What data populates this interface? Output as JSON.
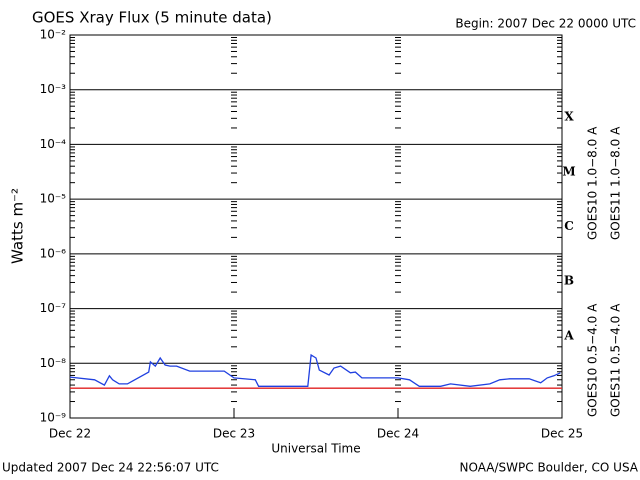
{
  "chart_data": {
    "type": "line",
    "title": "GOES Xray Flux (5 minute data)",
    "subtitle": "Begin:  2007 Dec 22 0000 UTC",
    "y_label": "Watts m⁻²",
    "x_label": "Universal Time",
    "footer_left": "Updated 2007 Dec 24 22:56:07 UTC",
    "footer_right": "NOAA/SWPC Boulder, CO USA",
    "log_y": true,
    "grid": true,
    "xlim": [
      0,
      3
    ],
    "xticks": [
      {
        "value": 0,
        "label": "Dec 22"
      },
      {
        "value": 1,
        "label": "Dec 23"
      },
      {
        "value": 2,
        "label": "Dec 24"
      },
      {
        "value": 3,
        "label": "Dec 25"
      }
    ],
    "ylim": [
      1e-09,
      0.01
    ],
    "yticks": [
      {
        "value": 1e-09,
        "label": "10⁻⁹"
      },
      {
        "value": 1e-08,
        "label": "10⁻⁸"
      },
      {
        "value": 1e-07,
        "label": "10⁻⁷"
      },
      {
        "value": 1e-06,
        "label": "10⁻⁶"
      },
      {
        "value": 1e-05,
        "label": "10⁻⁵"
      },
      {
        "value": 0.0001,
        "label": "10⁻⁴"
      },
      {
        "value": 0.001,
        "label": "10⁻³"
      },
      {
        "value": 0.01,
        "label": "10⁻²"
      }
    ],
    "class_labels": [
      "X",
      "M",
      "C",
      "B",
      "A"
    ],
    "series": [
      {
        "name": "GOES10 1.0−8.0 A",
        "color": "#8020c0",
        "x": [
          0,
          3
        ],
        "values": [
          null,
          null
        ]
      },
      {
        "name": "GOES11 1.0−8.0 A",
        "color": "#e02020",
        "x": [
          0,
          3
        ],
        "values": [
          3.5e-09,
          3.5e-09
        ]
      },
      {
        "name": "GOES10 0.5−4.0 A",
        "color": "#f0a020",
        "x": [
          0,
          3
        ],
        "values": [
          null,
          null
        ]
      },
      {
        "name": "GOES11 0.5−4.0 A",
        "color": "#2040e0",
        "x": [
          0,
          0.15,
          0.21,
          0.24,
          0.26,
          0.3,
          0.35,
          0.48,
          0.49,
          0.52,
          0.55,
          0.58,
          0.61,
          0.65,
          0.73,
          0.77,
          0.85,
          0.94,
          1.0,
          1.13,
          1.15,
          1.22,
          1.4,
          1.45,
          1.47,
          1.5,
          1.52,
          1.58,
          1.61,
          1.65,
          1.71,
          1.74,
          1.78,
          1.89,
          2.0,
          2.07,
          2.13,
          2.26,
          2.32,
          2.44,
          2.56,
          2.62,
          2.68,
          2.8,
          2.87,
          2.91,
          2.95,
          2.99
        ],
        "values": [
          5.6e-09,
          5e-09,
          4e-09,
          5.9e-09,
          5e-09,
          4.2e-09,
          4.2e-09,
          6.9e-09,
          1.06e-08,
          8.9e-09,
          1.25e-08,
          9.3e-09,
          8.9e-09,
          8.9e-09,
          7.2e-09,
          7.2e-09,
          7.2e-09,
          7.2e-09,
          5.4e-09,
          5e-09,
          3.8e-09,
          3.8e-09,
          3.8e-09,
          3.8e-09,
          1.42e-08,
          1.25e-08,
          7.5e-09,
          6.1e-09,
          8.2e-09,
          8.9e-09,
          6.7e-09,
          6.9e-09,
          5.4e-09,
          5.4e-09,
          5.4e-09,
          5e-09,
          3.8e-09,
          3.8e-09,
          4.2e-09,
          3.8e-09,
          4.2e-09,
          5e-09,
          5.2e-09,
          5.2e-09,
          4.4e-09,
          5.4e-09,
          5.9e-09,
          6.7e-09
        ]
      }
    ]
  }
}
